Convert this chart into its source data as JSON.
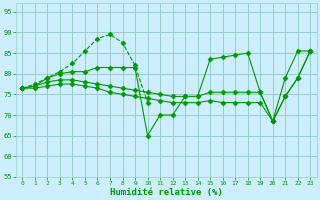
{
  "background_color": "#cceeff",
  "grid_color": "#99cccc",
  "line_color": "#009900",
  "xlabel": "Humidité relative (%)",
  "xlabel_color": "#009900",
  "ylim": [
    55,
    97
  ],
  "xlim": [
    -0.5,
    23.5
  ],
  "yticks": [
    55,
    60,
    65,
    70,
    75,
    80,
    85,
    90,
    95
  ],
  "xticks": [
    0,
    1,
    2,
    3,
    4,
    5,
    6,
    7,
    8,
    9,
    10,
    11,
    12,
    13,
    14,
    15,
    16,
    17,
    18,
    19,
    20,
    21,
    22,
    23
  ],
  "lines": [
    {
      "x": [
        0,
        1,
        2,
        3,
        4,
        5,
        6,
        7,
        8,
        9,
        10
      ],
      "y": [
        76.5,
        77.5,
        79.0,
        80.5,
        82.5,
        85.5,
        88.5,
        89.5,
        87.5,
        82.0,
        73.0
      ],
      "style": "--",
      "marker": "D",
      "ms": 2.5
    },
    {
      "x": [
        0,
        1,
        2,
        3,
        4,
        5,
        6,
        7,
        8,
        9,
        10,
        11,
        12,
        13,
        14,
        15,
        16,
        17,
        18,
        19,
        20,
        21,
        22,
        23
      ],
      "y": [
        76.5,
        77.0,
        79.0,
        80.0,
        80.5,
        80.5,
        81.5,
        81.5,
        81.5,
        81.5,
        65.0,
        70.0,
        70.0,
        74.5,
        74.5,
        83.5,
        84.0,
        84.5,
        85.0,
        75.5,
        68.5,
        79.0,
        85.5,
        85.5
      ],
      "style": "-",
      "marker": "D",
      "ms": 2.5
    },
    {
      "x": [
        0,
        1,
        2,
        3,
        4,
        5,
        6,
        7,
        8,
        9,
        10,
        11,
        12,
        13,
        14,
        15,
        16,
        17,
        18,
        19,
        20,
        21,
        22,
        23
      ],
      "y": [
        76.5,
        77.0,
        78.0,
        78.5,
        78.5,
        78.0,
        77.5,
        77.0,
        76.5,
        76.0,
        75.5,
        75.0,
        74.5,
        74.5,
        74.5,
        75.5,
        75.5,
        75.5,
        75.5,
        75.5,
        68.5,
        74.5,
        79.0,
        85.5
      ],
      "style": "-",
      "marker": "D",
      "ms": 2.5
    },
    {
      "x": [
        0,
        1,
        2,
        3,
        4,
        5,
        6,
        7,
        8,
        9,
        10,
        11,
        12,
        13,
        14,
        15,
        16,
        17,
        18,
        19,
        20,
        21,
        22,
        23
      ],
      "y": [
        76.5,
        76.5,
        77.0,
        77.5,
        77.5,
        77.0,
        76.5,
        75.5,
        75.0,
        74.5,
        74.0,
        73.5,
        73.0,
        73.0,
        73.0,
        73.5,
        73.0,
        73.0,
        73.0,
        73.0,
        68.5,
        74.5,
        79.0,
        85.5
      ],
      "style": "-",
      "marker": "D",
      "ms": 2.5
    }
  ]
}
